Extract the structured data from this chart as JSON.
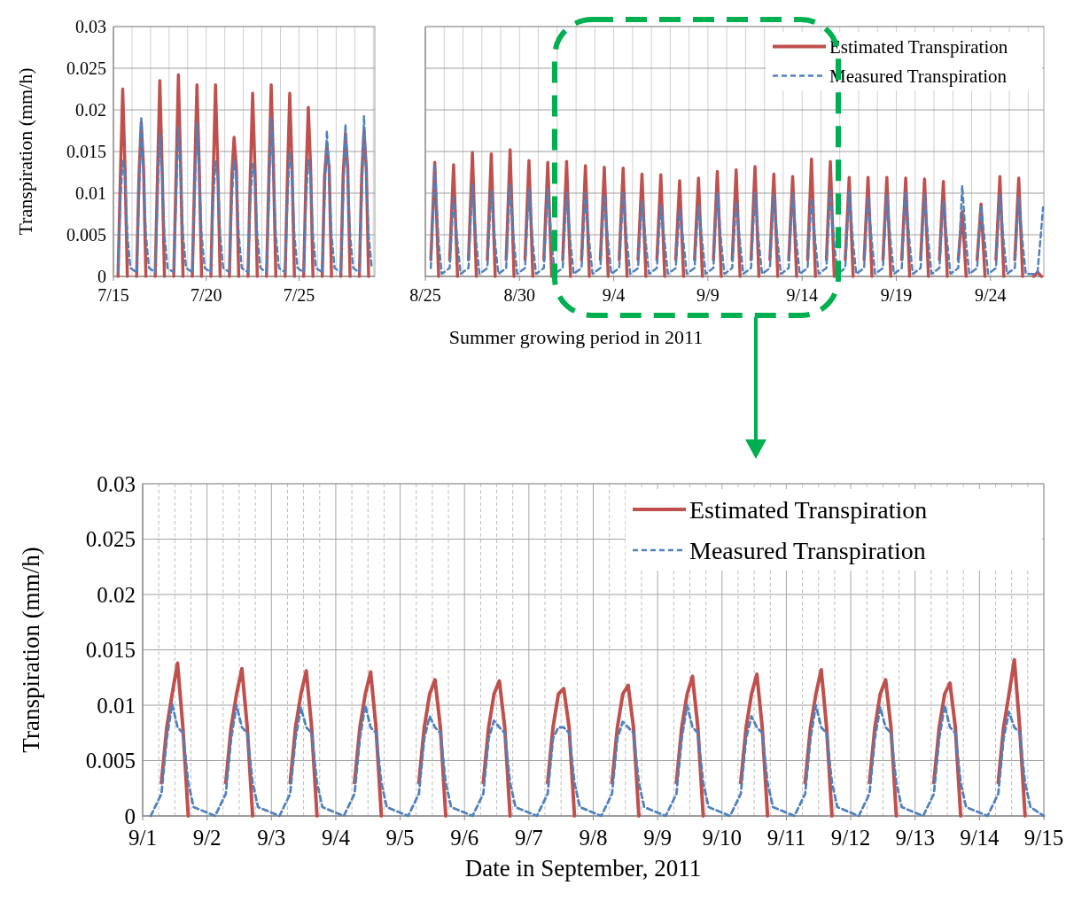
{
  "chart_data": [
    {
      "type": "line",
      "ylabel": "Transpiration (mm/h)",
      "ylim": [
        0,
        0.03
      ],
      "yticks": [
        0,
        0.005,
        0.01,
        0.015,
        0.02,
        0.025,
        0.03
      ],
      "grid": true,
      "legend": false,
      "xlim": [
        "2011-07-15",
        "2011-07-29T02:00"
      ],
      "xticks": [
        {
          "value": "2011-07-15",
          "label": "7/15"
        },
        {
          "value": "2011-07-16",
          "label": null
        },
        {
          "value": "2011-07-17",
          "label": null
        },
        {
          "value": "2011-07-18",
          "label": null
        },
        {
          "value": "2011-07-19",
          "label": null
        },
        {
          "value": "2011-07-20",
          "label": "7/20"
        },
        {
          "value": "2011-07-21",
          "label": null
        },
        {
          "value": "2011-07-22",
          "label": null
        },
        {
          "value": "2011-07-23",
          "label": null
        },
        {
          "value": "2011-07-24",
          "label": null
        },
        {
          "value": "2011-07-25",
          "label": "7/25"
        },
        {
          "value": "2011-07-26",
          "label": null
        },
        {
          "value": "2011-07-27",
          "label": null
        },
        {
          "value": "2011-07-28",
          "label": null
        },
        {
          "value": "2011-07-29",
          "label": null
        }
      ],
      "x": [
        "2011-07-15T06:00",
        "2011-07-15T09:00",
        "2011-07-15T12:00",
        "2011-07-15T15:00",
        "2011-07-15T18:00",
        "2011-07-15T22:00",
        "2011-07-16T06:00",
        "2011-07-16T09:00",
        "2011-07-16T12:00",
        "2011-07-16T15:00",
        "2011-07-16T18:00",
        "2011-07-16T22:00",
        "2011-07-17T06:00",
        "2011-07-17T09:00",
        "2011-07-17T12:00",
        "2011-07-17T15:00",
        "2011-07-17T18:00",
        "2011-07-17T22:00",
        "2011-07-18T06:00",
        "2011-07-18T09:00",
        "2011-07-18T12:00",
        "2011-07-18T15:00",
        "2011-07-18T18:00",
        "2011-07-18T22:00",
        "2011-07-19T06:00",
        "2011-07-19T09:00",
        "2011-07-19T12:00",
        "2011-07-19T15:00",
        "2011-07-19T18:00",
        "2011-07-19T22:00",
        "2011-07-20T06:00",
        "2011-07-20T09:00",
        "2011-07-20T12:00",
        "2011-07-20T15:00",
        "2011-07-20T18:00",
        "2011-07-20T22:00",
        "2011-07-21T06:00",
        "2011-07-21T09:00",
        "2011-07-21T12:00",
        "2011-07-21T15:00",
        "2011-07-21T18:00",
        "2011-07-21T22:00",
        "2011-07-22T06:00",
        "2011-07-22T09:00",
        "2011-07-22T12:00",
        "2011-07-22T15:00",
        "2011-07-22T18:00",
        "2011-07-22T22:00",
        "2011-07-23T06:00",
        "2011-07-23T09:00",
        "2011-07-23T12:00",
        "2011-07-23T15:00",
        "2011-07-23T18:00",
        "2011-07-23T22:00",
        "2011-07-24T06:00",
        "2011-07-24T09:00",
        "2011-07-24T12:00",
        "2011-07-24T15:00",
        "2011-07-24T18:00",
        "2011-07-24T22:00",
        "2011-07-25T06:00",
        "2011-07-25T09:00",
        "2011-07-25T12:00",
        "2011-07-25T15:00",
        "2011-07-25T18:00",
        "2011-07-25T22:00",
        "2011-07-26T06:00",
        "2011-07-26T09:00",
        "2011-07-26T12:00",
        "2011-07-26T15:00",
        "2011-07-26T18:00",
        "2011-07-26T22:00",
        "2011-07-27T06:00",
        "2011-07-27T09:00",
        "2011-07-27T12:00",
        "2011-07-27T15:00",
        "2011-07-27T18:00",
        "2011-07-27T22:00",
        "2011-07-28T06:00",
        "2011-07-28T09:00",
        "2011-07-28T12:00",
        "2011-07-28T15:00",
        "2011-07-28T18:00",
        "2011-07-28T22:00"
      ],
      "series": [
        {
          "color": "#c0504d",
          "line_style": "solid",
          "values": [
            0,
            0.012,
            0.0225,
            0.013,
            0,
            null,
            0,
            0.012,
            0.0185,
            0.013,
            0,
            null,
            0,
            0.012,
            0.0235,
            0.013,
            0,
            null,
            0,
            0.012,
            0.0242,
            0.013,
            0,
            null,
            0,
            0.012,
            0.023,
            0.013,
            0,
            null,
            0,
            0.012,
            0.023,
            0.013,
            0,
            null,
            0,
            0.012,
            0.0167,
            0.013,
            0,
            null,
            0,
            0.012,
            0.022,
            0.013,
            0,
            null,
            0,
            0.012,
            0.023,
            0.013,
            0,
            null,
            0,
            0.012,
            0.022,
            0.013,
            0,
            null,
            0,
            0.012,
            0.0203,
            0.013,
            0,
            null,
            0,
            0.012,
            0.0158,
            0.013,
            0,
            null,
            0,
            0.012,
            0.0172,
            0.013,
            0,
            null,
            0,
            0.012,
            0.0175,
            0.013,
            0,
            null
          ]
        },
        {
          "color": "#4f81bd",
          "line_style": "dashed",
          "values": [
            0.0005,
            0.009,
            0.014,
            0.012,
            0.005,
            0.001,
            0.0005,
            0.009,
            0.019,
            0.012,
            0.005,
            0.001,
            0.0005,
            0.009,
            0.017,
            0.012,
            0.005,
            0.001,
            0.0005,
            0.009,
            0.018,
            0.012,
            0.005,
            0.001,
            0.0005,
            0.009,
            0.0185,
            0.012,
            0.005,
            0.001,
            0.0005,
            0.009,
            0.0138,
            0.012,
            0.005,
            0.001,
            0.0005,
            0.009,
            0.014,
            0.012,
            0.005,
            0.001,
            0.0005,
            0.009,
            0.0135,
            0.012,
            0.005,
            0.001,
            0.0005,
            0.009,
            0.019,
            0.012,
            0.005,
            0.001,
            0.0005,
            0.009,
            0.015,
            0.012,
            0.005,
            0.001,
            0.0005,
            0.009,
            0.014,
            0.012,
            0.005,
            0.001,
            0.0005,
            0.009,
            0.0175,
            0.012,
            0.005,
            0.001,
            0.0005,
            0.009,
            0.0183,
            0.012,
            0.005,
            0.001,
            0.0005,
            0.009,
            0.0193,
            0.012,
            0.005,
            0.001
          ]
        }
      ]
    },
    {
      "type": "line",
      "xlabel": "Summer growing period in 2011",
      "ylim": [
        0,
        0.03
      ],
      "yticks": [
        0,
        0.005,
        0.01,
        0.015,
        0.02,
        0.025,
        0.03
      ],
      "grid": true,
      "legend": "top right",
      "tick_labels": "x",
      "xlim": [
        "2011-08-25",
        "2011-09-26T20:00"
      ],
      "xticks": [
        {
          "value": "2011-08-25",
          "label": "8/25"
        },
        {
          "value": "2011-08-26",
          "label": null
        },
        {
          "value": "2011-08-27",
          "label": null
        },
        {
          "value": "2011-08-28",
          "label": null
        },
        {
          "value": "2011-08-29",
          "label": null
        },
        {
          "value": "2011-08-30",
          "label": "8/30"
        },
        {
          "value": "2011-08-31",
          "label": null
        },
        {
          "value": "2011-09-01",
          "label": null
        },
        {
          "value": "2011-09-02",
          "label": null
        },
        {
          "value": "2011-09-03",
          "label": null
        },
        {
          "value": "2011-09-04",
          "label": "9/4"
        },
        {
          "value": "2011-09-05",
          "label": null
        },
        {
          "value": "2011-09-06",
          "label": null
        },
        {
          "value": "2011-09-07",
          "label": null
        },
        {
          "value": "2011-09-08",
          "label": null
        },
        {
          "value": "2011-09-09",
          "label": "9/9"
        },
        {
          "value": "2011-09-10",
          "label": null
        },
        {
          "value": "2011-09-11",
          "label": null
        },
        {
          "value": "2011-09-12",
          "label": null
        },
        {
          "value": "2011-09-13",
          "label": null
        },
        {
          "value": "2011-09-14",
          "label": "9/14"
        },
        {
          "value": "2011-09-15",
          "label": null
        },
        {
          "value": "2011-09-16",
          "label": null
        },
        {
          "value": "2011-09-17",
          "label": null
        },
        {
          "value": "2011-09-18",
          "label": null
        },
        {
          "value": "2011-09-19",
          "label": "9/19"
        },
        {
          "value": "2011-09-20",
          "label": null
        },
        {
          "value": "2011-09-21",
          "label": null
        },
        {
          "value": "2011-09-22",
          "label": null
        },
        {
          "value": "2011-09-23",
          "label": null
        },
        {
          "value": "2011-09-24",
          "label": "9/24"
        },
        {
          "value": "2011-09-25",
          "label": null
        },
        {
          "value": "2011-09-26",
          "label": null
        }
      ],
      "x": [
        "2011-08-25T07:00",
        "2011-08-25T12:00",
        "2011-08-25T17:00",
        "2011-08-25T21:00",
        "2011-08-26T07:00",
        "2011-08-26T12:00",
        "2011-08-26T17:00",
        "2011-08-26T21:00",
        "2011-08-27T07:00",
        "2011-08-27T12:00",
        "2011-08-27T17:00",
        "2011-08-27T21:00",
        "2011-08-28T07:00",
        "2011-08-28T12:00",
        "2011-08-28T17:00",
        "2011-08-28T21:00",
        "2011-08-29T07:00",
        "2011-08-29T12:00",
        "2011-08-29T17:00",
        "2011-08-29T21:00",
        "2011-08-30T07:00",
        "2011-08-30T12:00",
        "2011-08-30T17:00",
        "2011-08-30T21:00",
        "2011-08-31T07:00",
        "2011-08-31T12:00",
        "2011-08-31T17:00",
        "2011-08-31T21:00",
        "2011-09-01T07:00",
        "2011-09-01T12:00",
        "2011-09-01T17:00",
        "2011-09-01T21:00",
        "2011-09-02T07:00",
        "2011-09-02T12:00",
        "2011-09-02T17:00",
        "2011-09-02T21:00",
        "2011-09-03T07:00",
        "2011-09-03T12:00",
        "2011-09-03T17:00",
        "2011-09-03T21:00",
        "2011-09-04T07:00",
        "2011-09-04T12:00",
        "2011-09-04T17:00",
        "2011-09-04T21:00",
        "2011-09-05T07:00",
        "2011-09-05T12:00",
        "2011-09-05T17:00",
        "2011-09-05T21:00",
        "2011-09-06T07:00",
        "2011-09-06T12:00",
        "2011-09-06T17:00",
        "2011-09-06T21:00",
        "2011-09-07T07:00",
        "2011-09-07T12:00",
        "2011-09-07T17:00",
        "2011-09-07T21:00",
        "2011-09-08T07:00",
        "2011-09-08T12:00",
        "2011-09-08T17:00",
        "2011-09-08T21:00",
        "2011-09-09T07:00",
        "2011-09-09T12:00",
        "2011-09-09T17:00",
        "2011-09-09T21:00",
        "2011-09-10T07:00",
        "2011-09-10T12:00",
        "2011-09-10T17:00",
        "2011-09-10T21:00",
        "2011-09-11T07:00",
        "2011-09-11T12:00",
        "2011-09-11T17:00",
        "2011-09-11T21:00",
        "2011-09-12T07:00",
        "2011-09-12T12:00",
        "2011-09-12T17:00",
        "2011-09-12T21:00",
        "2011-09-13T07:00",
        "2011-09-13T12:00",
        "2011-09-13T17:00",
        "2011-09-13T21:00",
        "2011-09-14T07:00",
        "2011-09-14T12:00",
        "2011-09-14T17:00",
        "2011-09-14T21:00",
        "2011-09-15T07:00",
        "2011-09-15T12:00",
        "2011-09-15T17:00",
        "2011-09-15T21:00",
        "2011-09-16T07:00",
        "2011-09-16T12:00",
        "2011-09-16T17:00",
        "2011-09-16T21:00",
        "2011-09-17T07:00",
        "2011-09-17T12:00",
        "2011-09-17T17:00",
        "2011-09-17T21:00",
        "2011-09-18T07:00",
        "2011-09-18T12:00",
        "2011-09-18T17:00",
        "2011-09-18T21:00",
        "2011-09-19T07:00",
        "2011-09-19T12:00",
        "2011-09-19T17:00",
        "2011-09-19T21:00",
        "2011-09-20T07:00",
        "2011-09-20T12:00",
        "2011-09-20T17:00",
        "2011-09-20T21:00",
        "2011-09-21T07:00",
        "2011-09-21T12:00",
        "2011-09-21T17:00",
        "2011-09-21T21:00",
        "2011-09-22T07:00",
        "2011-09-22T12:00",
        "2011-09-22T17:00",
        "2011-09-22T21:00",
        "2011-09-23T07:00",
        "2011-09-23T12:00",
        "2011-09-23T17:00",
        "2011-09-23T21:00",
        "2011-09-24T07:00",
        "2011-09-24T12:00",
        "2011-09-24T17:00",
        "2011-09-24T21:00",
        "2011-09-25T07:00",
        "2011-09-25T12:00",
        "2011-09-25T17:00",
        "2011-09-25T21:00",
        "2011-09-26T07:00",
        "2011-09-26T12:00",
        "2011-09-26T17:00",
        "2011-09-26T19:00"
      ],
      "series": [
        {
          "name": "Estimated Transpiration",
          "color": "#c0504d",
          "line_style": "solid",
          "values": [
            0.002,
            0.0137,
            0,
            null,
            0.002,
            0.0134,
            0,
            null,
            0.002,
            0.0149,
            0,
            null,
            0.002,
            0.0147,
            0,
            null,
            0.002,
            0.0152,
            0,
            null,
            0.002,
            0.0139,
            0,
            null,
            0.002,
            0.0137,
            0,
            null,
            0.002,
            0.0138,
            0,
            null,
            0.002,
            0.0133,
            0,
            null,
            0.002,
            0.0131,
            0,
            null,
            0.002,
            0.013,
            0,
            null,
            0.002,
            0.0123,
            0,
            null,
            0.002,
            0.0122,
            0,
            null,
            0.002,
            0.0115,
            0,
            null,
            0.002,
            0.0118,
            0,
            null,
            0.002,
            0.0126,
            0,
            null,
            0.002,
            0.0128,
            0,
            null,
            0.002,
            0.0132,
            0,
            null,
            0.002,
            0.0123,
            0,
            null,
            0.002,
            0.012,
            0,
            null,
            0.002,
            0.0141,
            0,
            null,
            0.002,
            0.0138,
            0,
            null,
            0.002,
            0.0119,
            0,
            null,
            0.002,
            0.0119,
            0,
            null,
            0.002,
            0.0119,
            0,
            null,
            0.002,
            0.0118,
            0,
            null,
            0.002,
            0.0117,
            0,
            null,
            0.002,
            0.0114,
            0,
            null,
            0.002,
            0.0078,
            0,
            null,
            0.002,
            0.0087,
            0,
            null,
            0.002,
            0.012,
            0,
            null,
            0.002,
            0.0118,
            0,
            null,
            0,
            0.0005,
            0,
            null
          ]
        },
        {
          "name": "Measured Transpiration",
          "color": "#4f81bd",
          "line_style": "dashed",
          "values": [
            0.001,
            0.0135,
            0.004,
            0.0003,
            0.001,
            0.0095,
            0.004,
            0.0003,
            0.001,
            0.011,
            0.004,
            0.0003,
            0.001,
            0.0103,
            0.004,
            0.0003,
            0.001,
            0.011,
            0.004,
            0.0003,
            0.001,
            0.0105,
            0.004,
            0.0003,
            0.001,
            0.0105,
            0.004,
            0.0003,
            0.001,
            0.0101,
            0.004,
            0.0003,
            0.001,
            0.01,
            0.004,
            0.0003,
            0.001,
            0.0098,
            0.004,
            0.0003,
            0.001,
            0.01,
            0.004,
            0.0003,
            0.001,
            0.009,
            0.004,
            0.0003,
            0.001,
            0.0086,
            0.004,
            0.0003,
            0.001,
            0.008,
            0.004,
            0.0003,
            0.001,
            0.0085,
            0.004,
            0.0003,
            0.001,
            0.01,
            0.004,
            0.0003,
            0.001,
            0.009,
            0.004,
            0.0003,
            0.001,
            0.01,
            0.004,
            0.0003,
            0.001,
            0.0098,
            0.004,
            0.0003,
            0.001,
            0.01,
            0.004,
            0.0003,
            0.001,
            0.0094,
            0.004,
            0.0003,
            0.001,
            0.0103,
            0.004,
            0.0003,
            0.001,
            0.0102,
            0.004,
            0.0003,
            0.001,
            0.0095,
            0.004,
            0.0003,
            0.001,
            0.0098,
            0.004,
            0.0003,
            0.001,
            0.0102,
            0.004,
            0.0003,
            0.001,
            0.0098,
            0.004,
            0.0003,
            0.001,
            0.009,
            0.004,
            0.0003,
            0.001,
            0.0109,
            0.004,
            0.0003,
            0.001,
            0.0085,
            0.004,
            0.0003,
            0.001,
            0.0098,
            0.004,
            0.0003,
            0.001,
            0.0095,
            0.004,
            0.0003,
            0.0003,
            0.0005,
            0.006,
            0.0083
          ]
        }
      ]
    },
    {
      "type": "line",
      "xlabel": "Date in September, 2011",
      "ylabel": "Transpiration (mm/h)",
      "ylim": [
        0,
        0.03
      ],
      "yticks": [
        0,
        0.005,
        0.01,
        0.015,
        0.02,
        0.025,
        0.03
      ],
      "grid": true,
      "legend": "top right",
      "xlim": [
        "2011-09-01",
        "2011-09-15"
      ],
      "xticks": [
        {
          "value": "2011-09-01",
          "label": "9/1"
        },
        {
          "value": "2011-09-02",
          "label": "9/2"
        },
        {
          "value": "2011-09-03",
          "label": "9/3"
        },
        {
          "value": "2011-09-04",
          "label": "9/4"
        },
        {
          "value": "2011-09-05",
          "label": "9/5"
        },
        {
          "value": "2011-09-06",
          "label": "9/6"
        },
        {
          "value": "2011-09-07",
          "label": "9/7"
        },
        {
          "value": "2011-09-08",
          "label": "9/8"
        },
        {
          "value": "2011-09-09",
          "label": "9/9"
        },
        {
          "value": "2011-09-10",
          "label": "9/10"
        },
        {
          "value": "2011-09-11",
          "label": "9/11"
        },
        {
          "value": "2011-09-12",
          "label": "9/12"
        },
        {
          "value": "2011-09-13",
          "label": "9/13"
        },
        {
          "value": "2011-09-14",
          "label": "9/14"
        },
        {
          "value": "2011-09-15",
          "label": "9/15"
        },
        {
          "value": "2011-09-01T06:00",
          "label": null
        },
        {
          "value": "2011-09-01T12:00",
          "label": null
        },
        {
          "value": "2011-09-01T18:00",
          "label": null
        },
        {
          "value": "2011-09-02T06:00",
          "label": null
        },
        {
          "value": "2011-09-02T12:00",
          "label": null
        },
        {
          "value": "2011-09-02T18:00",
          "label": null
        },
        {
          "value": "2011-09-03T06:00",
          "label": null
        },
        {
          "value": "2011-09-03T12:00",
          "label": null
        },
        {
          "value": "2011-09-03T18:00",
          "label": null
        },
        {
          "value": "2011-09-04T06:00",
          "label": null
        },
        {
          "value": "2011-09-04T12:00",
          "label": null
        },
        {
          "value": "2011-09-04T18:00",
          "label": null
        },
        {
          "value": "2011-09-05T06:00",
          "label": null
        },
        {
          "value": "2011-09-05T12:00",
          "label": null
        },
        {
          "value": "2011-09-05T18:00",
          "label": null
        },
        {
          "value": "2011-09-06T06:00",
          "label": null
        },
        {
          "value": "2011-09-06T12:00",
          "label": null
        },
        {
          "value": "2011-09-06T18:00",
          "label": null
        },
        {
          "value": "2011-09-07T06:00",
          "label": null
        },
        {
          "value": "2011-09-07T12:00",
          "label": null
        },
        {
          "value": "2011-09-07T18:00",
          "label": null
        },
        {
          "value": "2011-09-08T06:00",
          "label": null
        },
        {
          "value": "2011-09-08T12:00",
          "label": null
        },
        {
          "value": "2011-09-08T18:00",
          "label": null
        },
        {
          "value": "2011-09-09T06:00",
          "label": null
        },
        {
          "value": "2011-09-09T12:00",
          "label": null
        },
        {
          "value": "2011-09-09T18:00",
          "label": null
        },
        {
          "value": "2011-09-10T06:00",
          "label": null
        },
        {
          "value": "2011-09-10T12:00",
          "label": null
        },
        {
          "value": "2011-09-10T18:00",
          "label": null
        },
        {
          "value": "2011-09-11T06:00",
          "label": null
        },
        {
          "value": "2011-09-11T12:00",
          "label": null
        },
        {
          "value": "2011-09-11T18:00",
          "label": null
        },
        {
          "value": "2011-09-12T06:00",
          "label": null
        },
        {
          "value": "2011-09-12T12:00",
          "label": null
        },
        {
          "value": "2011-09-12T18:00",
          "label": null
        },
        {
          "value": "2011-09-13T06:00",
          "label": null
        },
        {
          "value": "2011-09-13T12:00",
          "label": null
        },
        {
          "value": "2011-09-13T18:00",
          "label": null
        },
        {
          "value": "2011-09-14T06:00",
          "label": null
        },
        {
          "value": "2011-09-14T12:00",
          "label": null
        },
        {
          "value": "2011-09-14T18:00",
          "label": null
        }
      ],
      "x": [
        "2011-09-01T03:00",
        "2011-09-01T07:00",
        "2011-09-01T09:00",
        "2011-09-01T11:00",
        "2011-09-01T13:00",
        "2011-09-01T15:00",
        "2011-09-01T17:00",
        "2011-09-01T19:00",
        "2011-09-02T03:00",
        "2011-09-02T07:00",
        "2011-09-02T09:00",
        "2011-09-02T11:00",
        "2011-09-02T13:00",
        "2011-09-02T15:00",
        "2011-09-02T17:00",
        "2011-09-02T19:00",
        "2011-09-03T03:00",
        "2011-09-03T07:00",
        "2011-09-03T09:00",
        "2011-09-03T11:00",
        "2011-09-03T13:00",
        "2011-09-03T15:00",
        "2011-09-03T17:00",
        "2011-09-03T19:00",
        "2011-09-04T03:00",
        "2011-09-04T07:00",
        "2011-09-04T09:00",
        "2011-09-04T11:00",
        "2011-09-04T13:00",
        "2011-09-04T15:00",
        "2011-09-04T17:00",
        "2011-09-04T19:00",
        "2011-09-05T03:00",
        "2011-09-05T07:00",
        "2011-09-05T09:00",
        "2011-09-05T11:00",
        "2011-09-05T13:00",
        "2011-09-05T15:00",
        "2011-09-05T17:00",
        "2011-09-05T19:00",
        "2011-09-06T03:00",
        "2011-09-06T07:00",
        "2011-09-06T09:00",
        "2011-09-06T11:00",
        "2011-09-06T13:00",
        "2011-09-06T15:00",
        "2011-09-06T17:00",
        "2011-09-06T19:00",
        "2011-09-07T03:00",
        "2011-09-07T07:00",
        "2011-09-07T09:00",
        "2011-09-07T11:00",
        "2011-09-07T13:00",
        "2011-09-07T15:00",
        "2011-09-07T17:00",
        "2011-09-07T19:00",
        "2011-09-08T03:00",
        "2011-09-08T07:00",
        "2011-09-08T09:00",
        "2011-09-08T11:00",
        "2011-09-08T13:00",
        "2011-09-08T15:00",
        "2011-09-08T17:00",
        "2011-09-08T19:00",
        "2011-09-09T03:00",
        "2011-09-09T07:00",
        "2011-09-09T09:00",
        "2011-09-09T11:00",
        "2011-09-09T13:00",
        "2011-09-09T15:00",
        "2011-09-09T17:00",
        "2011-09-09T19:00",
        "2011-09-10T03:00",
        "2011-09-10T07:00",
        "2011-09-10T09:00",
        "2011-09-10T11:00",
        "2011-09-10T13:00",
        "2011-09-10T15:00",
        "2011-09-10T17:00",
        "2011-09-10T19:00",
        "2011-09-11T03:00",
        "2011-09-11T07:00",
        "2011-09-11T09:00",
        "2011-09-11T11:00",
        "2011-09-11T13:00",
        "2011-09-11T15:00",
        "2011-09-11T17:00",
        "2011-09-11T19:00",
        "2011-09-12T03:00",
        "2011-09-12T07:00",
        "2011-09-12T09:00",
        "2011-09-12T11:00",
        "2011-09-12T13:00",
        "2011-09-12T15:00",
        "2011-09-12T17:00",
        "2011-09-12T19:00",
        "2011-09-13T03:00",
        "2011-09-13T07:00",
        "2011-09-13T09:00",
        "2011-09-13T11:00",
        "2011-09-13T13:00",
        "2011-09-13T15:00",
        "2011-09-13T17:00",
        "2011-09-13T19:00",
        "2011-09-14T03:00",
        "2011-09-14T07:00",
        "2011-09-14T09:00",
        "2011-09-14T11:00",
        "2011-09-14T13:00",
        "2011-09-14T15:00",
        "2011-09-14T17:00",
        "2011-09-14T19:00",
        "2011-09-15T00:00"
      ],
      "series": [
        {
          "name": "Estimated Transpiration",
          "color": "#c0504d",
          "line_style": "solid",
          "values": [
            null,
            0.003,
            0.008,
            0.011,
            0.0138,
            0.008,
            0,
            null,
            null,
            0.003,
            0.008,
            0.011,
            0.0133,
            0.008,
            0,
            null,
            null,
            0.003,
            0.008,
            0.011,
            0.0131,
            0.008,
            0,
            null,
            null,
            0.003,
            0.008,
            0.011,
            0.013,
            0.008,
            0,
            null,
            null,
            0.003,
            0.008,
            0.011,
            0.0123,
            0.008,
            0,
            null,
            null,
            0.003,
            0.008,
            0.011,
            0.0122,
            0.008,
            0,
            null,
            null,
            0.003,
            0.008,
            0.011,
            0.0115,
            0.008,
            0,
            null,
            null,
            0.003,
            0.008,
            0.011,
            0.0118,
            0.008,
            0,
            null,
            null,
            0.003,
            0.008,
            0.011,
            0.0126,
            0.008,
            0,
            null,
            null,
            0.003,
            0.008,
            0.011,
            0.0128,
            0.008,
            0,
            null,
            null,
            0.003,
            0.008,
            0.011,
            0.0132,
            0.008,
            0,
            null,
            null,
            0.003,
            0.008,
            0.011,
            0.0123,
            0.008,
            0,
            null,
            null,
            0.003,
            0.008,
            0.011,
            0.012,
            0.008,
            0,
            null,
            null,
            0.003,
            0.008,
            0.011,
            0.0141,
            0.008,
            0,
            null,
            null
          ]
        },
        {
          "name": "Measured Transpiration",
          "color": "#4f81bd",
          "line_style": "dashed",
          "values": [
            0,
            0.002,
            0.007,
            0.0101,
            0.008,
            0.0075,
            0.003,
            0.0008,
            0,
            0.002,
            0.007,
            0.01,
            0.008,
            0.0075,
            0.003,
            0.0008,
            0,
            0.002,
            0.007,
            0.0098,
            0.008,
            0.0075,
            0.003,
            0.0008,
            0,
            0.002,
            0.007,
            0.01,
            0.008,
            0.0075,
            0.003,
            0.0008,
            0,
            0.002,
            0.007,
            0.009,
            0.008,
            0.0075,
            0.003,
            0.0008,
            0,
            0.002,
            0.007,
            0.0086,
            0.008,
            0.0075,
            0.003,
            0.0008,
            0,
            0.002,
            0.007,
            0.008,
            0.008,
            0.0075,
            0.003,
            0.0008,
            0,
            0.002,
            0.007,
            0.0085,
            0.008,
            0.0075,
            0.003,
            0.0008,
            0,
            0.002,
            0.007,
            0.01,
            0.008,
            0.0075,
            0.003,
            0.0008,
            0,
            0.002,
            0.007,
            0.009,
            0.008,
            0.0075,
            0.003,
            0.0008,
            0,
            0.002,
            0.007,
            0.01,
            0.008,
            0.0075,
            0.003,
            0.0008,
            0,
            0.002,
            0.007,
            0.0098,
            0.008,
            0.0075,
            0.003,
            0.0008,
            0,
            0.002,
            0.007,
            0.01,
            0.008,
            0.0075,
            0.003,
            0.0008,
            0,
            0.002,
            0.007,
            0.0094,
            0.008,
            0.0075,
            0.003,
            0.0008,
            0
          ]
        }
      ]
    }
  ]
}
